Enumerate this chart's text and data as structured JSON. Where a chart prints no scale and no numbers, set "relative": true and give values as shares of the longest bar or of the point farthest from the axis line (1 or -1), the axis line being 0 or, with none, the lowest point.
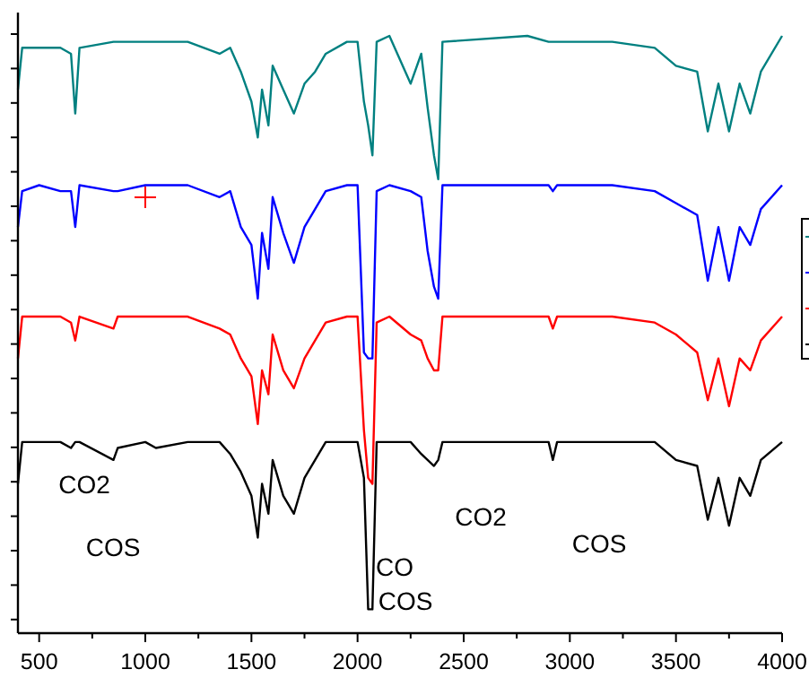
{
  "chart_data": {
    "type": "line",
    "relative": true,
    "grid": false,
    "marker": "none",
    "line_style": "solid",
    "x": [
      400,
      420,
      500,
      600,
      650,
      670,
      690,
      850,
      870,
      1000,
      1050,
      1200,
      1350,
      1400,
      1450,
      1500,
      1530,
      1550,
      1580,
      1600,
      1650,
      1700,
      1750,
      1800,
      1850,
      1950,
      2000,
      2030,
      2050,
      2070,
      2090,
      2150,
      2250,
      2300,
      2330,
      2360,
      2380,
      2400,
      2800,
      2900,
      2920,
      2940,
      3200,
      3400,
      3500,
      3600,
      3650,
      3700,
      3750,
      3800,
      3850,
      3900,
      4000
    ],
    "xlim": [
      400,
      4000
    ],
    "xticks": [
      500,
      {
        "value": 750,
        "label": null
      },
      1000,
      {
        "value": 1250,
        "label": null
      },
      1500,
      {
        "value": 1750,
        "label": null
      },
      2000,
      {
        "value": 2250,
        "label": null
      },
      2500,
      {
        "value": 2750,
        "label": null
      },
      3000,
      {
        "value": 3250,
        "label": null
      },
      3500,
      {
        "value": 3750,
        "label": null
      },
      4000
    ],
    "series": [
      {
        "color": "#008080",
        "values": [
          0.91,
          0.98,
          0.98,
          0.98,
          0.97,
          0.87,
          0.98,
          0.99,
          0.99,
          0.99,
          0.99,
          0.99,
          0.97,
          0.98,
          0.94,
          0.89,
          0.83,
          0.91,
          0.85,
          0.95,
          0.91,
          0.87,
          0.92,
          0.94,
          0.97,
          0.99,
          0.99,
          0.89,
          0.85,
          0.8,
          0.99,
          1.0,
          0.92,
          0.97,
          0.88,
          0.8,
          0.76,
          0.99,
          1.0,
          0.99,
          0.99,
          0.99,
          0.99,
          0.98,
          0.95,
          0.94,
          0.84,
          0.92,
          0.84,
          0.92,
          0.87,
          0.94,
          1.0
        ]
      },
      {
        "color": "#0000ff",
        "values": [
          0.68,
          0.74,
          0.75,
          0.74,
          0.74,
          0.68,
          0.75,
          0.74,
          0.74,
          0.75,
          0.75,
          0.75,
          0.73,
          0.74,
          0.68,
          0.65,
          0.56,
          0.67,
          0.61,
          0.73,
          0.67,
          0.62,
          0.68,
          0.71,
          0.74,
          0.75,
          0.75,
          0.47,
          0.46,
          0.46,
          0.74,
          0.75,
          0.74,
          0.73,
          0.64,
          0.58,
          0.56,
          0.75,
          0.75,
          0.75,
          0.74,
          0.75,
          0.75,
          0.74,
          0.72,
          0.7,
          0.59,
          0.68,
          0.59,
          0.68,
          0.65,
          0.71,
          0.75
        ]
      },
      {
        "color": "#ff0000",
        "values": [
          0.46,
          0.53,
          0.53,
          0.53,
          0.52,
          0.49,
          0.53,
          0.51,
          0.53,
          0.53,
          0.53,
          0.53,
          0.51,
          0.5,
          0.46,
          0.43,
          0.35,
          0.44,
          0.4,
          0.5,
          0.44,
          0.41,
          0.46,
          0.49,
          0.52,
          0.53,
          0.53,
          0.34,
          0.26,
          0.25,
          0.52,
          0.53,
          0.5,
          0.49,
          0.46,
          0.44,
          0.44,
          0.53,
          0.53,
          0.53,
          0.51,
          0.53,
          0.53,
          0.52,
          0.5,
          0.47,
          0.39,
          0.46,
          0.38,
          0.46,
          0.44,
          0.49,
          0.53
        ]
      },
      {
        "color": "#000000",
        "values": [
          0.25,
          0.32,
          0.32,
          0.32,
          0.31,
          0.32,
          0.32,
          0.29,
          0.31,
          0.32,
          0.31,
          0.32,
          0.32,
          0.3,
          0.27,
          0.23,
          0.16,
          0.25,
          0.2,
          0.29,
          0.23,
          0.2,
          0.26,
          0.29,
          0.32,
          0.32,
          0.32,
          0.26,
          0.04,
          0.04,
          0.32,
          0.32,
          0.32,
          0.3,
          0.29,
          0.28,
          0.29,
          0.32,
          0.32,
          0.32,
          0.29,
          0.32,
          0.32,
          0.32,
          0.29,
          0.28,
          0.19,
          0.26,
          0.18,
          0.26,
          0.23,
          0.29,
          0.32
        ]
      }
    ],
    "annotations": [
      "CO2",
      "COS",
      "CO",
      "COS",
      "CO2",
      "COS"
    ]
  }
}
